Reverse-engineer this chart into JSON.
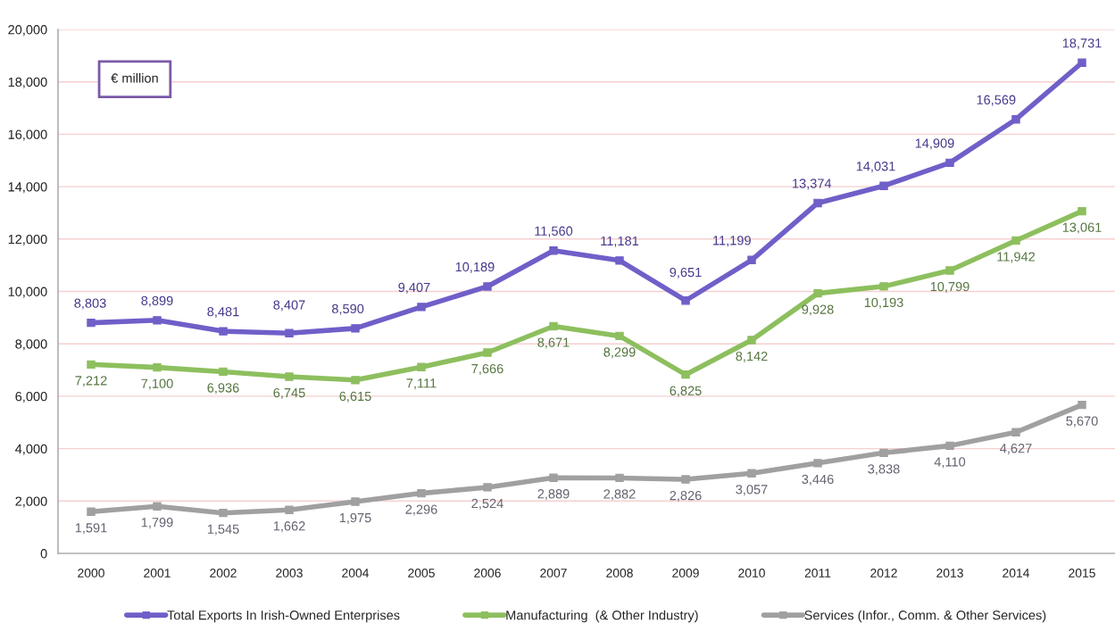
{
  "chart_data": {
    "type": "line",
    "categories": [
      "2000",
      "2001",
      "2002",
      "2003",
      "2004",
      "2005",
      "2006",
      "2007",
      "2008",
      "2009",
      "2010",
      "2011",
      "2012",
      "2013",
      "2014",
      "2015"
    ],
    "series": [
      {
        "name": "Total Exports In Irish-Owned Enterprises",
        "color": "#6f5fc8",
        "values": [
          8803,
          8899,
          8481,
          8407,
          8590,
          9407,
          10189,
          11560,
          11181,
          9651,
          11199,
          13374,
          14031,
          14909,
          16569,
          18731
        ],
        "value_labels": [
          "8,803",
          "8,899",
          "8,481",
          "8,407",
          "8,590",
          "9,407",
          "10,189",
          "11,560",
          "11,181",
          "9,651",
          "11,199",
          "13,374",
          "14,031",
          "14,909",
          "16,569",
          "18,731"
        ]
      },
      {
        "name": "Manufacturing  (& Other Industry)",
        "color": "#8dbf5e",
        "values": [
          7212,
          7100,
          6936,
          6745,
          6615,
          7111,
          7666,
          8671,
          8299,
          6825,
          8142,
          9928,
          10193,
          10799,
          11942,
          13061
        ],
        "value_labels": [
          "7,212",
          "7,100",
          "6,936",
          "6,745",
          "6,615",
          "7,111",
          "7,666",
          "8,671",
          "8,299",
          "6,825",
          "8,142",
          "9,928",
          "10,193",
          "10,799",
          "11,942",
          "13,061"
        ]
      },
      {
        "name": "Services (Infor., Comm. & Other Services)",
        "color": "#a0a0a0",
        "values": [
          1591,
          1799,
          1545,
          1662,
          1975,
          2296,
          2524,
          2889,
          2882,
          2826,
          3057,
          3446,
          3838,
          4110,
          4627,
          5670
        ],
        "value_labels": [
          "1,591",
          "1,799",
          "1,545",
          "1,662",
          "1,975",
          "2,296",
          "2,524",
          "2,889",
          "2,882",
          "2,826",
          "3,057",
          "3,446",
          "3,838",
          "4,110",
          "4,627",
          "5,670"
        ]
      }
    ],
    "ylim": [
      0,
      20000
    ],
    "yticks": [
      0,
      {
        "value": 2000,
        "label": "2,000"
      },
      {
        "value": 4000,
        "label": "4,000"
      },
      {
        "value": 6000,
        "label": "6,000"
      },
      {
        "value": 8000,
        "label": "8,000"
      },
      {
        "value": 10000,
        "label": "10,000"
      },
      {
        "value": 12000,
        "label": "12,000"
      },
      {
        "value": 14000,
        "label": "14,000"
      },
      {
        "value": 16000,
        "label": "16,000"
      },
      {
        "value": 18000,
        "label": "18,000"
      },
      {
        "value": 20000,
        "label": "20,000"
      }
    ],
    "grid": "y",
    "legend": "bottom",
    "marker": "square",
    "line_style": "solid",
    "annotations": [
      "€ million"
    ]
  }
}
